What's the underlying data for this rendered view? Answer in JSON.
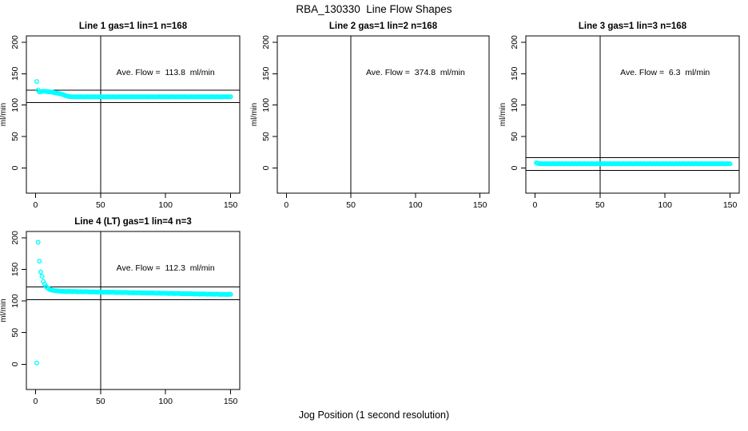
{
  "figure": {
    "title": "RBA_130330  Line Flow Shapes",
    "xlabel": "Jog Position (1 second resolution)",
    "background_color": "#FFFFFF",
    "axis_color": "#000000",
    "marker_color": "#00FFFF"
  },
  "chart_data": [
    {
      "type": "scatter",
      "title": "Line 1 gas=1 lin=1 n=168",
      "annotation": "Ave. Flow =  113.8  ml/min",
      "ave_flow_ml_min": 113.8,
      "ylabel": "ml/min",
      "xticks": [
        0,
        50,
        100,
        150
      ],
      "yticks": [
        0,
        50,
        100,
        150,
        200
      ],
      "xlim": [
        -7,
        157
      ],
      "ylim": [
        -40,
        210
      ],
      "grid": false,
      "vline_x": 50,
      "hlines": [
        123.8,
        103.8
      ],
      "x_start": 1,
      "x_step": 1,
      "y_values": [
        137.5,
        124,
        121,
        121.3,
        121.8,
        122,
        122,
        121.8,
        121.5,
        121.2,
        121,
        120.8,
        120.5,
        120,
        119.6,
        119.2,
        118.8,
        118.4,
        118,
        117.5,
        116.8,
        116,
        115.2,
        114.5,
        114,
        113.6,
        113.4,
        113.3,
        113.2,
        113.2,
        113.1,
        113.3,
        113,
        113.2,
        113.4,
        113.1,
        113.2,
        113,
        113.3,
        113.2,
        113.1,
        113.3,
        113,
        113.2,
        113.4,
        113.1,
        113.2,
        113,
        113.3,
        113.2,
        113.1,
        113.3,
        113,
        113.2,
        113.4,
        113.1,
        113.2,
        113,
        113.3,
        113.2,
        113.1,
        113.3,
        113,
        113.2,
        113.4,
        113.1,
        113.2,
        113,
        113.3,
        113.2,
        113.1,
        113.3,
        113,
        113.2,
        113.4,
        113.1,
        113.2,
        113,
        113.3,
        113.2,
        113.1,
        113.3,
        113,
        113.2,
        113.4,
        113.1,
        113.2,
        113,
        113.3,
        113.2,
        113.1,
        113.3,
        113,
        113.2,
        113.4,
        113.1,
        113.2,
        113,
        113.3,
        113.2,
        113.1,
        113.3,
        113,
        113.2,
        113.4,
        113.1,
        113.2,
        113,
        113.3,
        113.2,
        113.1,
        113.3,
        113,
        113.2,
        113.4,
        113.1,
        113.2,
        113,
        113.3,
        113.2,
        113.1,
        113.3,
        113,
        113.2,
        113.4,
        113.1,
        113.2,
        113,
        113.3,
        113.2,
        113.1,
        113.3,
        113,
        113.2,
        113.4,
        113.1,
        113.2,
        113,
        113.3,
        113.2,
        113.1,
        113.3,
        113,
        113.2,
        113.4,
        113.1,
        113.2,
        113,
        113.3,
        113.2
      ]
    },
    {
      "type": "scatter",
      "title": "Line 2 gas=1 lin=2 n=168",
      "annotation": "Ave. Flow =  374.8  ml/min",
      "ave_flow_ml_min": 374.8,
      "ylabel": "ml/min",
      "xticks": [
        0,
        50,
        100,
        150
      ],
      "yticks": [
        0,
        50,
        100,
        150,
        200
      ],
      "xlim": [
        -7,
        157
      ],
      "ylim": [
        -40,
        210
      ],
      "grid": false,
      "vline_x": 50,
      "hlines": [],
      "x_start": 1,
      "x_step": 1,
      "y_values": []
    },
    {
      "type": "scatter",
      "title": "Line 3 gas=1 lin=3 n=168",
      "annotation": "Ave. Flow =  6.3  ml/min",
      "ave_flow_ml_min": 6.3,
      "ylabel": "ml/min",
      "xticks": [
        0,
        50,
        100,
        150
      ],
      "yticks": [
        0,
        50,
        100,
        150,
        200
      ],
      "xlim": [
        -7,
        157
      ],
      "ylim": [
        -40,
        210
      ],
      "grid": false,
      "vline_x": 50,
      "hlines": [
        16.3,
        -3.7
      ],
      "x_start": 1,
      "x_step": 1,
      "y_values": [
        8.2,
        7.4,
        7,
        6.9,
        6.8,
        6.8,
        6.7,
        6.9,
        6.8,
        6.6,
        6.9,
        6.7,
        6.8,
        7,
        6.7,
        6.8,
        6.7,
        6.9,
        6.8,
        6.6,
        6.9,
        6.7,
        6.8,
        7,
        6.7,
        6.8,
        6.7,
        6.9,
        6.8,
        6.6,
        6.9,
        6.7,
        6.8,
        7,
        6.7,
        6.8,
        6.7,
        6.9,
        6.8,
        6.6,
        6.9,
        6.7,
        6.8,
        7,
        6.7,
        6.8,
        6.7,
        6.9,
        6.8,
        6.6,
        6.9,
        6.7,
        6.8,
        7,
        6.7,
        6.8,
        6.7,
        6.9,
        6.8,
        6.6,
        6.9,
        6.7,
        6.8,
        7,
        6.7,
        6.8,
        6.7,
        6.9,
        6.8,
        6.6,
        6.9,
        6.7,
        6.8,
        7,
        6.7,
        6.8,
        6.7,
        6.9,
        6.8,
        6.6,
        6.9,
        6.7,
        6.8,
        7,
        6.7,
        6.8,
        6.7,
        6.9,
        6.8,
        6.6,
        6.9,
        6.7,
        6.8,
        7,
        6.7,
        6.8,
        6.7,
        6.9,
        6.8,
        6.6,
        6.9,
        6.7,
        6.8,
        7,
        6.7,
        6.8,
        6.7,
        6.9,
        6.8,
        6.6,
        6.9,
        6.7,
        6.8,
        7,
        6.7,
        6.8,
        6.7,
        6.9,
        6.8,
        6.6,
        6.9,
        6.7,
        6.8,
        7,
        6.7,
        6.8,
        6.7,
        6.9,
        6.8,
        6.6,
        6.9,
        6.7,
        6.8,
        7,
        6.7,
        6.8,
        6.7,
        6.9,
        6.8,
        6.6,
        6.9,
        6.7,
        6.8,
        7,
        6.7,
        6.8,
        6.7,
        6.9,
        6.8,
        6.6
      ]
    },
    {
      "type": "scatter",
      "title": "Line 4 (LT) gas=1 lin=4 n=3",
      "annotation": "Ave. Flow =  112.3  ml/min",
      "ave_flow_ml_min": 112.3,
      "ylabel": "ml/min",
      "xticks": [
        0,
        50,
        100,
        150
      ],
      "yticks": [
        0,
        50,
        100,
        150,
        200
      ],
      "xlim": [
        -7,
        157
      ],
      "ylim": [
        -40,
        210
      ],
      "grid": false,
      "vline_x": 50,
      "hlines": [
        122.3,
        102.3
      ],
      "x_start": 1,
      "x_step": 1,
      "y_values": [
        2,
        193,
        163,
        146,
        139,
        131,
        126.5,
        123,
        121,
        119.5,
        118.3,
        117.5,
        117,
        116.6,
        116.3,
        116.1,
        115.9,
        115.7,
        115.5,
        115.4,
        115.5,
        114.8,
        115.3,
        114.9,
        115.4,
        115,
        115.3,
        114.7,
        115.2,
        115,
        115.1,
        114.5,
        114.9,
        114.6,
        115,
        114.4,
        114.8,
        114.5,
        114.9,
        114.6,
        114.7,
        114.1,
        114.5,
        114.2,
        114.6,
        114,
        114.4,
        114.1,
        114.5,
        114.2,
        114.3,
        113.7,
        114.1,
        113.8,
        114.2,
        113.6,
        114,
        113.7,
        114.1,
        113.8,
        113.9,
        113.3,
        113.7,
        113.4,
        113.8,
        113.2,
        113.6,
        113.3,
        113.7,
        113.4,
        113.5,
        112.9,
        113.3,
        113,
        113.4,
        112.8,
        113.2,
        112.9,
        113.3,
        113,
        113.1,
        112.5,
        112.9,
        112.6,
        113,
        112.4,
        112.8,
        112.5,
        112.9,
        112.6,
        112.7,
        112.1,
        112.5,
        112.2,
        112.6,
        112,
        112.4,
        112.1,
        112.5,
        112.2,
        112.3,
        111.7,
        112.1,
        111.8,
        112.2,
        111.6,
        112,
        111.7,
        112.1,
        111.8,
        111.9,
        111.3,
        111.7,
        111.4,
        111.8,
        111.2,
        111.6,
        111.3,
        111.7,
        111.4,
        111.5,
        110.9,
        111.3,
        111,
        111.4,
        110.8,
        111.2,
        110.9,
        111.3,
        111,
        111.1,
        110.6,
        111,
        110.7,
        111.1,
        110.5,
        110.9,
        110.6,
        111,
        110.7,
        110.8,
        110.3,
        110.7,
        110.4,
        110.8,
        110.2,
        110.6,
        110.3,
        110.7,
        110.5
      ]
    }
  ]
}
